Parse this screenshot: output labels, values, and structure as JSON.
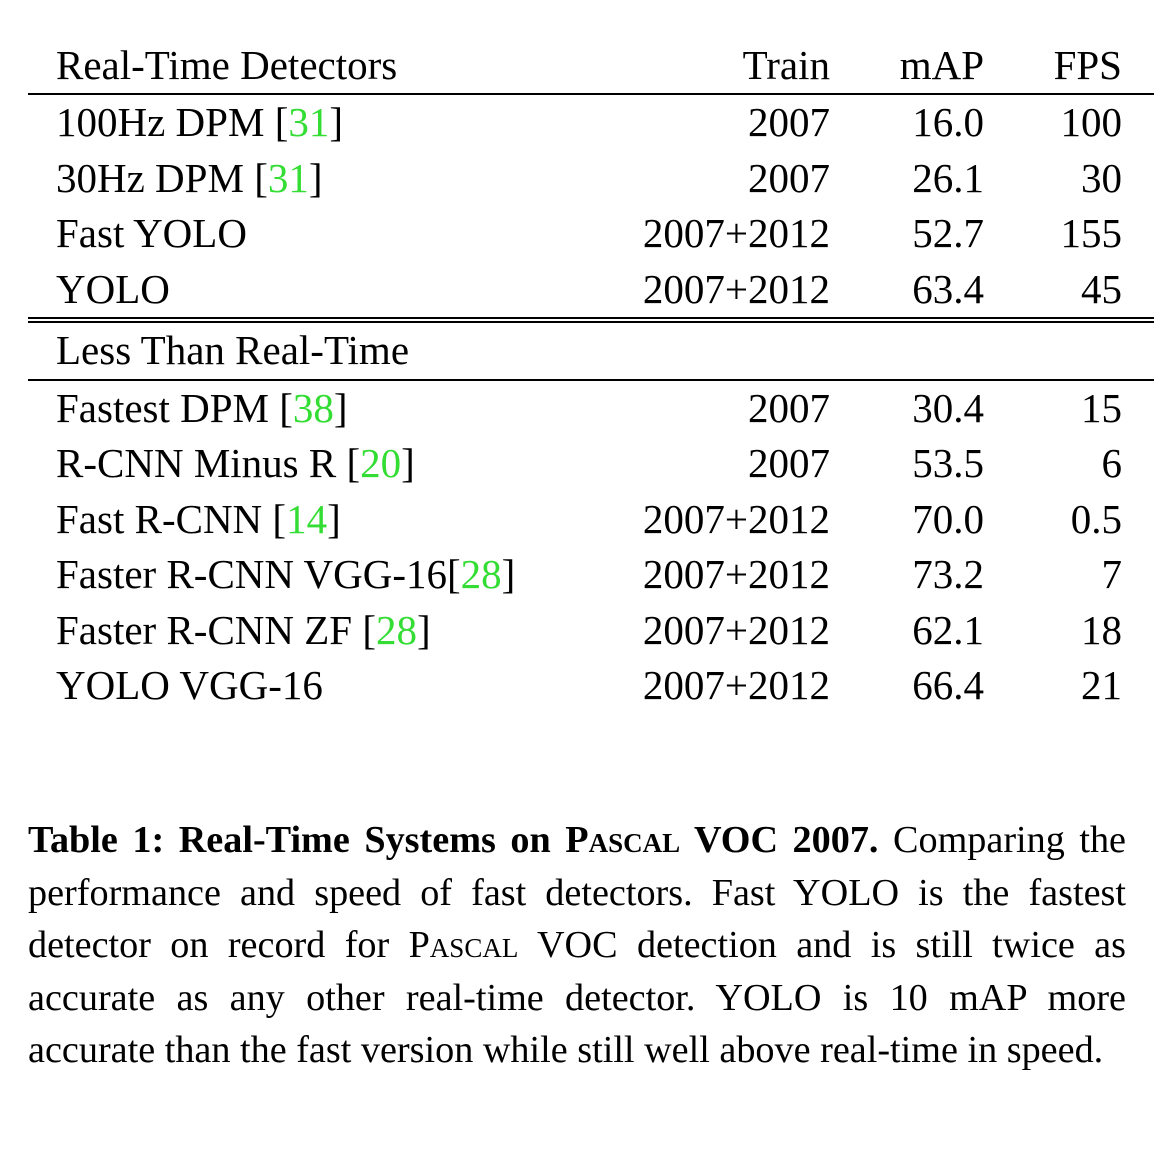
{
  "table": {
    "header": {
      "method": "Real-Time Detectors",
      "train": "Train",
      "map": "mAP",
      "fps": "FPS"
    },
    "realtime_rows": [
      {
        "method": "100Hz DPM",
        "cite": "31",
        "train": "2007",
        "map": "16.0",
        "fps": "100",
        "map_bold": false,
        "fps_bold": false
      },
      {
        "method": "30Hz DPM",
        "cite": "31",
        "train": "2007",
        "map": "26.1",
        "fps": "30",
        "map_bold": false,
        "fps_bold": false
      },
      {
        "method": "Fast YOLO",
        "cite": "",
        "train": "2007+2012",
        "map": "52.7",
        "fps": "155",
        "map_bold": false,
        "fps_bold": true
      },
      {
        "method": "YOLO",
        "cite": "",
        "train": "2007+2012",
        "map": "63.4",
        "fps": "45",
        "map_bold": true,
        "fps_bold": false
      }
    ],
    "section2_label": "Less Than Real-Time",
    "slow_rows": [
      {
        "method": "Fastest DPM",
        "cite": "38",
        "train": "2007",
        "map": "30.4",
        "fps": "15"
      },
      {
        "method": "R-CNN Minus R",
        "cite": "20",
        "train": "2007",
        "map": "53.5",
        "fps": "6"
      },
      {
        "method": "Fast R-CNN",
        "cite": "14",
        "train": "2007+2012",
        "map": "70.0",
        "fps": "0.5"
      },
      {
        "method": "Faster R-CNN VGG-16",
        "cite": "28",
        "train": "2007+2012",
        "map": "73.2",
        "fps": "7",
        "no_space": true
      },
      {
        "method": "Faster R-CNN ZF",
        "cite": "28",
        "train": "2007+2012",
        "map": "62.1",
        "fps": "18"
      },
      {
        "method": "YOLO VGG-16",
        "cite": "",
        "train": "2007+2012",
        "map": "66.4",
        "fps": "21"
      }
    ]
  },
  "caption": {
    "label": "Table 1:",
    "title_pre": "Real-Time Systems on ",
    "title_sc": "Pascal",
    "title_post": " VOC 2007.",
    "body_1": " Comparing the performance and speed of fast detectors.  Fast YOLO is the fastest detector on record for ",
    "body_sc": "Pascal",
    "body_2": " VOC detection and is still twice as accurate as any other real-time detector.  YOLO is 10 mAP more accurate than the fast version while still well above real-time in speed."
  },
  "colors": {
    "citation": "#33dd33",
    "text": "#000000"
  }
}
